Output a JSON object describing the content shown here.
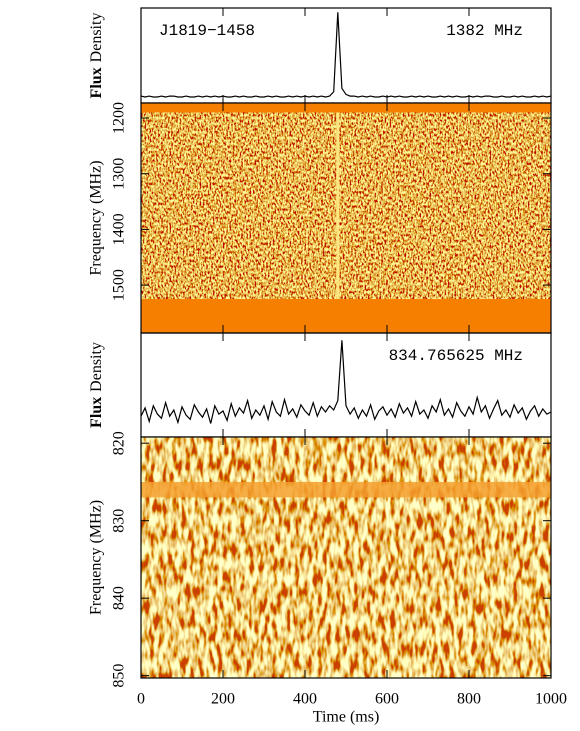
{
  "chart_data": [
    {
      "type": "line",
      "annotations": [
        "J1819−1458",
        "1382 MHz"
      ],
      "ylabel": [
        "Flux",
        "Density"
      ],
      "color": "#000000",
      "xlim": [
        0,
        1000
      ],
      "ylim": [
        -0.05,
        1.05
      ],
      "x": [
        0,
        10,
        20,
        30,
        40,
        50,
        60,
        70,
        80,
        90,
        100,
        110,
        120,
        130,
        140,
        150,
        160,
        170,
        180,
        190,
        200,
        210,
        220,
        230,
        240,
        250,
        260,
        270,
        280,
        290,
        300,
        310,
        320,
        330,
        340,
        350,
        360,
        370,
        380,
        390,
        400,
        410,
        420,
        430,
        440,
        450,
        460,
        470,
        480,
        490,
        500,
        510,
        520,
        530,
        540,
        550,
        560,
        570,
        580,
        590,
        600,
        610,
        620,
        630,
        640,
        650,
        660,
        670,
        680,
        690,
        700,
        710,
        720,
        730,
        740,
        750,
        760,
        770,
        780,
        790,
        800,
        810,
        820,
        830,
        840,
        850,
        860,
        870,
        880,
        890,
        900,
        910,
        920,
        930,
        940,
        950,
        960,
        970,
        980,
        990,
        1000
      ],
      "values": [
        0.03,
        0.02,
        0.03,
        0.02,
        0.02,
        0.03,
        0.02,
        0.03,
        0.03,
        0.02,
        0.02,
        0.03,
        0.02,
        0.02,
        0.03,
        0.02,
        0.03,
        0.02,
        0.03,
        0.02,
        0.03,
        0.02,
        0.02,
        0.03,
        0.02,
        0.03,
        0.02,
        0.02,
        0.03,
        0.02,
        0.02,
        0.03,
        0.02,
        0.03,
        0.02,
        0.02,
        0.03,
        0.02,
        0.03,
        0.02,
        0.03,
        0.02,
        0.03,
        0.02,
        0.03,
        0.02,
        0.03,
        0.08,
        1.0,
        0.12,
        0.05,
        0.03,
        0.03,
        0.02,
        0.03,
        0.02,
        0.03,
        0.02,
        0.02,
        0.03,
        0.02,
        0.03,
        0.02,
        0.03,
        0.02,
        0.02,
        0.03,
        0.02,
        0.03,
        0.02,
        0.03,
        0.02,
        0.02,
        0.03,
        0.02,
        0.03,
        0.02,
        0.03,
        0.02,
        0.02,
        0.03,
        0.02,
        0.03,
        0.02,
        0.03,
        0.03,
        0.02,
        0.02,
        0.03,
        0.02,
        0.02,
        0.03,
        0.02,
        0.03,
        0.02,
        0.02,
        0.03,
        0.02,
        0.03,
        0.02,
        0.03
      ]
    },
    {
      "type": "heatmap",
      "ylabel": "Frequency (MHz)",
      "xlim": [
        0,
        1000
      ],
      "ylim": [
        1173,
        1586
      ],
      "yticks": [
        1200,
        1300,
        1400,
        1500
      ],
      "masked": [
        [
          1173,
          1190
        ],
        [
          1525,
          1586
        ]
      ],
      "pulse_x": 480
    },
    {
      "type": "line",
      "annotations": [
        "834.765625 MHz"
      ],
      "ylabel": [
        "Flux",
        "Density"
      ],
      "color": "#000000",
      "xlim": [
        0,
        1000
      ],
      "ylim": [
        0,
        1
      ],
      "x": [
        0,
        10,
        20,
        30,
        40,
        50,
        60,
        70,
        80,
        90,
        100,
        110,
        120,
        130,
        140,
        150,
        160,
        170,
        180,
        190,
        200,
        210,
        220,
        230,
        240,
        250,
        260,
        270,
        280,
        290,
        300,
        310,
        320,
        330,
        340,
        350,
        360,
        370,
        380,
        390,
        400,
        410,
        420,
        430,
        440,
        450,
        460,
        470,
        480,
        490,
        500,
        510,
        520,
        530,
        540,
        550,
        560,
        570,
        580,
        590,
        600,
        610,
        620,
        630,
        640,
        650,
        660,
        670,
        680,
        690,
        700,
        710,
        720,
        730,
        740,
        750,
        760,
        770,
        780,
        790,
        800,
        810,
        820,
        830,
        840,
        850,
        860,
        870,
        880,
        890,
        900,
        910,
        920,
        930,
        940,
        950,
        960,
        970,
        980,
        990,
        1000
      ],
      "values": [
        0.2,
        0.28,
        0.15,
        0.3,
        0.22,
        0.18,
        0.33,
        0.2,
        0.26,
        0.14,
        0.29,
        0.21,
        0.17,
        0.31,
        0.24,
        0.19,
        0.27,
        0.13,
        0.3,
        0.22,
        0.25,
        0.16,
        0.32,
        0.2,
        0.28,
        0.23,
        0.35,
        0.18,
        0.26,
        0.21,
        0.3,
        0.17,
        0.34,
        0.24,
        0.2,
        0.36,
        0.22,
        0.27,
        0.19,
        0.31,
        0.25,
        0.21,
        0.33,
        0.2,
        0.29,
        0.24,
        0.3,
        0.26,
        0.35,
        0.93,
        0.3,
        0.22,
        0.28,
        0.18,
        0.26,
        0.2,
        0.31,
        0.17,
        0.25,
        0.29,
        0.21,
        0.27,
        0.19,
        0.32,
        0.23,
        0.28,
        0.2,
        0.34,
        0.22,
        0.26,
        0.18,
        0.3,
        0.24,
        0.36,
        0.21,
        0.27,
        0.19,
        0.33,
        0.25,
        0.2,
        0.29,
        0.22,
        0.38,
        0.24,
        0.3,
        0.18,
        0.27,
        0.35,
        0.21,
        0.26,
        0.19,
        0.31,
        0.23,
        0.28,
        0.17,
        0.25,
        0.3,
        0.2,
        0.27,
        0.22,
        0.24
      ]
    },
    {
      "type": "heatmap",
      "ylabel": "Frequency (MHz)",
      "xlabel": "Time (ms)",
      "xlim": [
        0,
        1000
      ],
      "ylim": [
        819.2,
        850.3
      ],
      "yticks": [
        820,
        830,
        840,
        850
      ],
      "xticks": [
        0,
        200,
        400,
        600,
        800,
        1000
      ],
      "masked": [
        [
          825,
          827
        ]
      ]
    }
  ]
}
